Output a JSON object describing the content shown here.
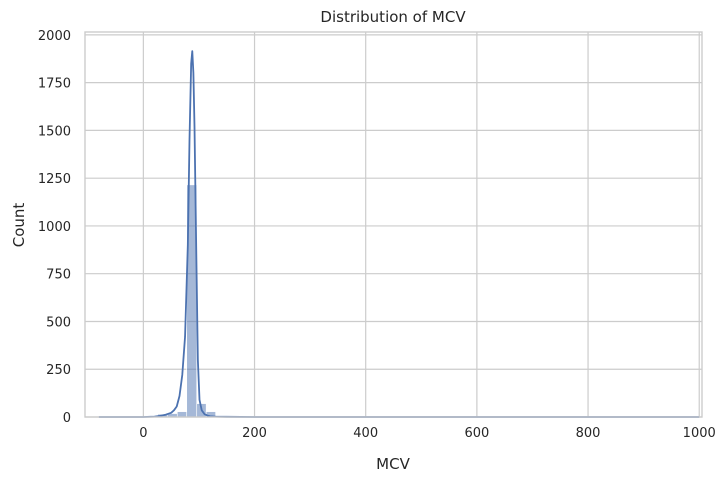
{
  "chart_data": {
    "type": "histogram",
    "title": "Distribution of MCV",
    "xlabel": "MCV",
    "ylabel": "Count",
    "xlim": [
      -105,
      1005
    ],
    "ylim": [
      0,
      2015
    ],
    "x_ticks": [
      0,
      200,
      400,
      600,
      800,
      1000
    ],
    "y_ticks": [
      0,
      250,
      500,
      750,
      1000,
      1250,
      1500,
      1750,
      2000
    ],
    "grid": true,
    "colors": {
      "bar_fill": "#4c72b0",
      "bar_fill_opacity": 0.5,
      "kde_line": "#4c72b0",
      "grid": "#cccccc",
      "spine": "#cccccc"
    },
    "bins": [
      {
        "x0": -78,
        "x1": -44,
        "count": 3
      },
      {
        "x0": 26,
        "x1": 43,
        "count": 15
      },
      {
        "x0": 43,
        "x1": 61,
        "count": 18
      },
      {
        "x0": 61,
        "x1": 78,
        "count": 28
      },
      {
        "x0": 78,
        "x1": 96,
        "count": 1215
      },
      {
        "x0": 96,
        "x1": 113,
        "count": 70
      },
      {
        "x0": 113,
        "x1": 130,
        "count": 28
      },
      {
        "x0": 130,
        "x1": 200,
        "count": 2
      },
      {
        "x0": 540,
        "x1": 560,
        "count": 1
      },
      {
        "x0": 980,
        "x1": 1000,
        "count": 2
      }
    ],
    "kde": {
      "x": [
        -80,
        0,
        20,
        30,
        40,
        50,
        55,
        60,
        65,
        70,
        75,
        80,
        83,
        86,
        88,
        90,
        92,
        95,
        98,
        101,
        105,
        110,
        115,
        120,
        130,
        150,
        200,
        400,
        600,
        800,
        1000
      ],
      "y": [
        0,
        0,
        2,
        6,
        12,
        22,
        35,
        55,
        110,
        220,
        420,
        900,
        1450,
        1850,
        1915,
        1800,
        1520,
        900,
        300,
        90,
        35,
        15,
        8,
        4,
        2,
        1,
        0,
        0,
        0,
        0,
        0
      ]
    }
  }
}
